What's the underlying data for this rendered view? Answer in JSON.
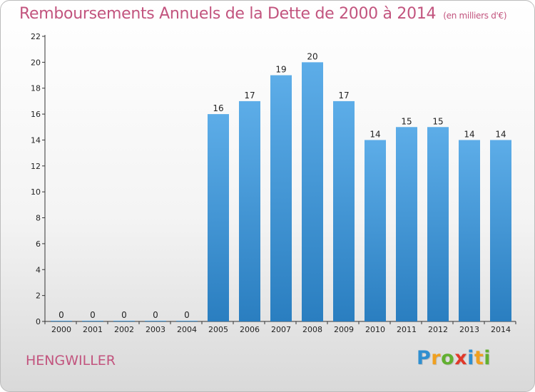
{
  "title": "Remboursements Annuels de la Dette de 2000 à 2014",
  "unit": "(en milliers d'€)",
  "place": "HENGWILLER",
  "logo": {
    "letters": [
      "P",
      "r",
      "o",
      "x",
      "i",
      "t",
      "i"
    ]
  },
  "colors": {
    "bar_light": "#5dade8",
    "bar_dark": "#2a7ec0",
    "title": "#c2547e"
  },
  "chart_data": {
    "type": "bar",
    "categories": [
      "2000",
      "2001",
      "2002",
      "2003",
      "2004",
      "2005",
      "2006",
      "2007",
      "2008",
      "2009",
      "2010",
      "2011",
      "2012",
      "2013",
      "2014"
    ],
    "values": [
      0,
      0,
      0,
      0,
      0,
      16,
      17,
      19,
      20,
      17,
      14,
      15,
      15,
      14,
      14
    ],
    "ylim": [
      0,
      22
    ],
    "yticks": [
      0,
      2,
      4,
      6,
      8,
      10,
      12,
      14,
      16,
      18,
      20,
      22
    ],
    "grid": false,
    "data_labels": true
  }
}
